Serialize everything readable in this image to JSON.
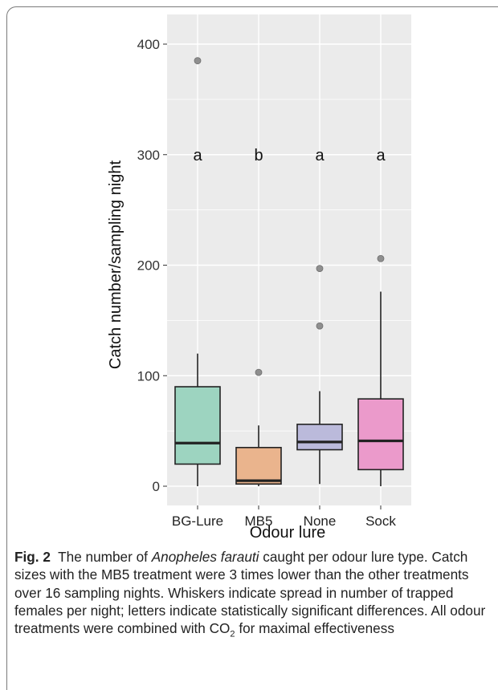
{
  "chart_data": {
    "type": "box",
    "xlabel": "Odour lure",
    "ylabel": "Catch number/sampling night",
    "ylim": [
      -20,
      410
    ],
    "yticks": [
      0,
      100,
      200,
      300,
      400
    ],
    "grid": true,
    "categories": [
      "BG-Lure",
      "MB5",
      "None",
      "Sock"
    ],
    "boxes": [
      {
        "category": "BG-Lure",
        "min": 0,
        "q1": 20,
        "median": 39,
        "q3": 90,
        "max": 120,
        "outliers": [
          385
        ],
        "letter": "a",
        "color": "#9dd4c0"
      },
      {
        "category": "MB5",
        "min": 0,
        "q1": 2,
        "median": 5,
        "q3": 35,
        "max": 55,
        "outliers": [
          103
        ],
        "letter": "b",
        "color": "#eab48d"
      },
      {
        "category": "None",
        "min": 2,
        "q1": 33,
        "median": 40,
        "q3": 56,
        "max": 86,
        "outliers": [
          145,
          197
        ],
        "letter": "a",
        "color": "#bbbadb"
      },
      {
        "category": "Sock",
        "min": 0,
        "q1": 15,
        "median": 41,
        "q3": 79,
        "max": 176,
        "outliers": [
          206
        ],
        "letter": "a",
        "color": "#eb9acb"
      }
    ],
    "letter_y": 300,
    "panel_bg": "#ebebeb",
    "grid_color": "#ffffff"
  },
  "caption": {
    "label": "Fig. 2",
    "part1": "The number of ",
    "species": "Anopheles farauti",
    "part2": " caught per odour lure type. Catch sizes with the MB5 treatment were 3 times lower than the other treatments over 16 sampling nights. Whiskers indicate spread in number of trapped females per night; letters indicate statistically significant differences. All odour treatments were combined with CO",
    "subscript": "2",
    "part3": " for maximal effectiveness"
  }
}
